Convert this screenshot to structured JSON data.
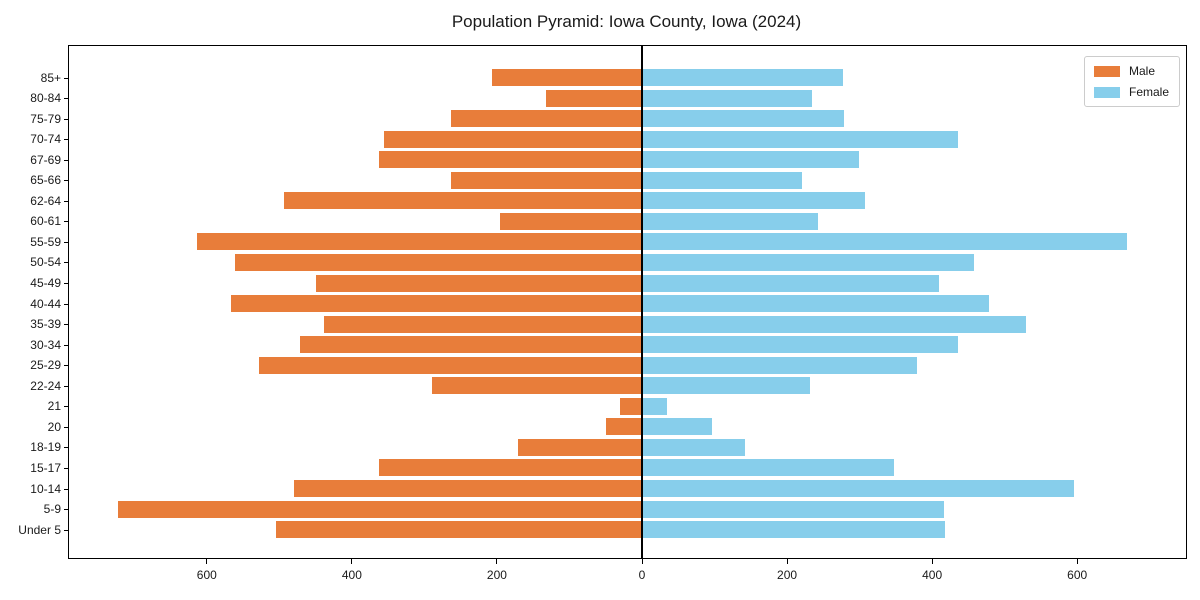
{
  "title": "Population Pyramid: Iowa County, Iowa (2024)",
  "chart_data": {
    "type": "bar",
    "orientation": "horizontal-pyramid",
    "title": "Population Pyramid: Iowa County, Iowa (2024)",
    "categories": [
      "85+",
      "80-84",
      "75-79",
      "70-74",
      "67-69",
      "65-66",
      "62-64",
      "60-61",
      "55-59",
      "50-54",
      "45-49",
      "40-44",
      "35-39",
      "30-34",
      "25-29",
      "22-24",
      "21",
      "20",
      "18-19",
      "15-17",
      "10-14",
      "5-9",
      "Under 5"
    ],
    "series": [
      {
        "name": "Male",
        "side": "left",
        "color": "#e87d3a",
        "values": [
          207,
          133,
          264,
          356,
          362,
          264,
          493,
          196,
          613,
          561,
          450,
          566,
          439,
          472,
          528,
          290,
          31,
          50,
          171,
          362,
          480,
          722,
          505
        ]
      },
      {
        "name": "Female",
        "side": "right",
        "color": "#87ceeb",
        "values": [
          277,
          234,
          278,
          436,
          299,
          220,
          308,
          243,
          668,
          458,
          410,
          479,
          530,
          435,
          379,
          232,
          35,
          96,
          142,
          348,
          595,
          416,
          418
        ]
      }
    ],
    "x_tick_labels": [
      "600",
      "400",
      "200",
      "0",
      "200",
      "400",
      "600"
    ],
    "x_tick_values": [
      -600,
      -400,
      -200,
      0,
      200,
      400,
      600
    ],
    "xlim": [
      -790,
      750
    ],
    "ylabel": "",
    "xlabel": "",
    "grid": false,
    "legend_position": "upper-right",
    "center_line_value": 0
  }
}
